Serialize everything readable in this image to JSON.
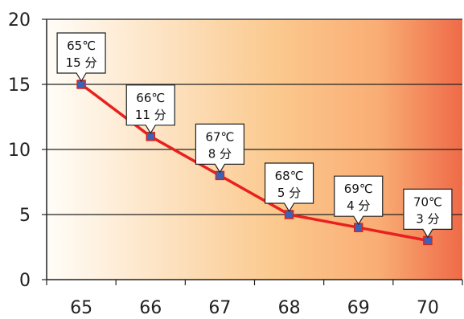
{
  "chart_data": {
    "type": "line",
    "x": [
      65,
      66,
      67,
      68,
      69,
      70
    ],
    "x_tick_labels": [
      "65",
      "66",
      "67",
      "68",
      "69",
      "70"
    ],
    "y_tick_labels": [
      "0",
      "5",
      "10",
      "15",
      "20"
    ],
    "y_ticks": [
      0,
      5,
      10,
      15,
      20
    ],
    "ylim": [
      0,
      20
    ],
    "xlim": [
      64.5,
      70.5
    ],
    "series": [
      {
        "values": [
          15,
          11,
          8,
          5,
          4,
          3
        ]
      }
    ],
    "annotations": [
      {
        "line1": "65℃",
        "line2": "15 分"
      },
      {
        "line1": "66℃",
        "line2": "11 分"
      },
      {
        "line1": "67℃",
        "line2": "8 分"
      },
      {
        "line1": "68℃",
        "line2": "5 分"
      },
      {
        "line1": "69℃",
        "line2": "4 分"
      },
      {
        "line1": "70℃",
        "line2": "3 分"
      }
    ],
    "grid": true,
    "legend": "none",
    "colors": {
      "line": "#e8201e",
      "marker_fill": "#3a63b8",
      "marker_stroke": "#d8231e",
      "background_start": "#fffdf8",
      "background_mid": "#fbc98e",
      "background_end": "#ef6a48",
      "grid": "#222222"
    }
  }
}
